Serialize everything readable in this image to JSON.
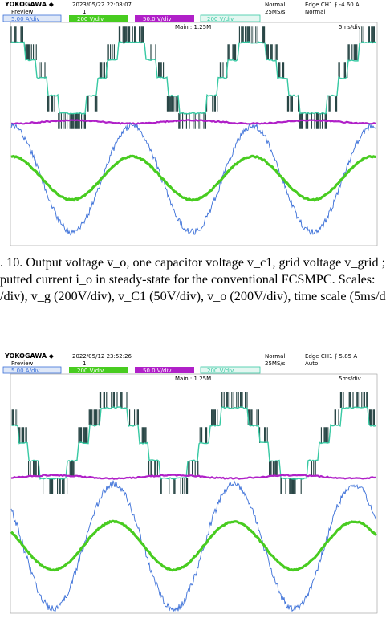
{
  "scope1": {
    "brand": "YOKOGAWA ◆",
    "datetime": "2023/05/22 22:08:07",
    "mode": "Normal",
    "rate": "25MS/s",
    "trigger": "Edge CH1 ⨍ -4.60 A",
    "trigger_mode": "Normal",
    "preview": "Preview",
    "ch1_scale": "5.00 A/div",
    "ch2_scale": "200 V/div",
    "ch3_scale": "50.0 V/div",
    "ch4_scale": "200 V/div",
    "zoom": "Main : 1.25M",
    "timebase": "5ms/div",
    "ch_marker": "1",
    "colors": {
      "ch1": "#3a6fd8",
      "ch2": "#48cc20",
      "ch3": "#b020c8",
      "ch4": "#37c9a3",
      "dark": "#1e3d3c"
    }
  },
  "scope2": {
    "brand": "YOKOGAWA ◆",
    "datetime": "2022/05/12 23:52:26",
    "mode": "Normal",
    "rate": "25MS/s",
    "trigger": "Edge CH1 ⨍ 5.85 A",
    "trigger_mode": "Auto",
    "preview": "Preview",
    "ch1_scale": "5.00 A/div",
    "ch2_scale": "200 V/div",
    "ch3_scale": "50.0 V/div",
    "ch4_scale": "200 V/div",
    "zoom": "Main : 1.25M",
    "timebase": "5ms/div",
    "ch_marker": "1",
    "colors": {
      "ch1": "#3a6fd8",
      "ch2": "#48cc20",
      "ch3": "#b020c8",
      "ch4": "#37c9a3",
      "dark": "#1e3d3c"
    }
  },
  "caption": {
    "line1": ". 10.  Output voltage v_o, one capacitor voltage v_c1, grid voltage v_grid ;",
    "line2": "putted current i_o in steady-state for the conventional FCSMPC. Scales:",
    "line3": "/div), v_g (200V/div), v_C1 (50V/div), v_o (200V/div), time scale (5ms/d"
  }
}
